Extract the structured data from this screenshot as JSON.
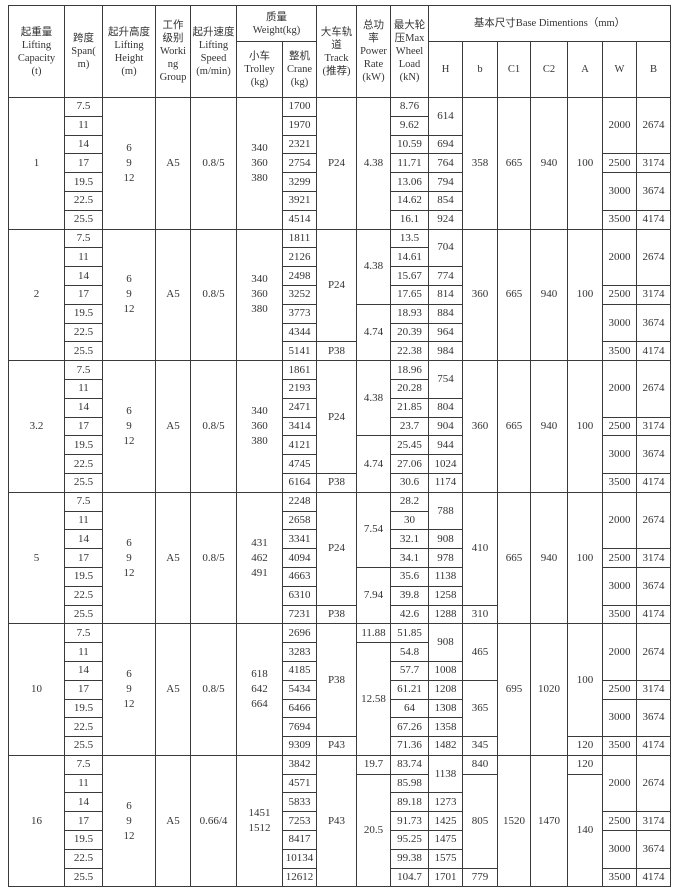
{
  "headers": {
    "capacity": "起重量\nLifting\nCapacity\n(t)",
    "span": "跨度\nSpan(\nm)",
    "height": "起升高度\nLifting\nHeight\n(m)",
    "group": "工作\n级别\nWorki\nng\nGroup",
    "speed": "起升速度\nLifting\nSpeed\n(m/min)",
    "weight": "质量\nWeight(kg)",
    "trolley": "小车\nTrolley\n(kg)",
    "crane": "整机\nCrane\n(kg)",
    "track": "大车轨\n道\nTrack\n(推荐)",
    "power": "总功\n率\nPower\nRate\n(kW)",
    "load": "最大轮\n压Max\nWheel\nLoad\n(kN)",
    "base": "基本尺寸Base Dimentions（mm）",
    "H": "H",
    "b": "b",
    "C1": "C1",
    "C2": "C2",
    "A": "A",
    "W": "W",
    "B": "B"
  },
  "spans": [
    "7.5",
    "11",
    "14",
    "17",
    "19.5",
    "22.5",
    "25.5"
  ],
  "blocks": [
    {
      "capacity": "1",
      "height": "6\n9\n12",
      "group": "A5",
      "speed": "0.8/5",
      "trolley": [
        [
          "340\n360\n380",
          7
        ]
      ],
      "crane": [
        [
          "1700",
          1
        ],
        [
          "1970",
          1
        ],
        [
          "2321",
          1
        ],
        [
          "2754",
          1
        ],
        [
          "3299",
          1
        ],
        [
          "3921",
          1
        ],
        [
          "4514",
          1
        ]
      ],
      "track": [
        [
          "P24",
          7
        ]
      ],
      "power": [
        [
          "4.38",
          7
        ]
      ],
      "load": [
        [
          "8.76",
          1
        ],
        [
          "9.62",
          1
        ],
        [
          "10.59",
          1
        ],
        [
          "11.71",
          1
        ],
        [
          "13.06",
          1
        ],
        [
          "14.62",
          1
        ],
        [
          "16.1",
          1
        ]
      ],
      "H": [
        [
          "614",
          2
        ],
        [
          "694",
          1
        ],
        [
          "764",
          1
        ],
        [
          "794",
          1
        ],
        [
          "854",
          1
        ],
        [
          "924",
          1
        ]
      ],
      "b": [
        [
          "358",
          7
        ]
      ],
      "C1": [
        [
          "665",
          7
        ]
      ],
      "C2": [
        [
          "940",
          7
        ]
      ],
      "A": [
        [
          "100",
          7
        ]
      ],
      "W": [
        [
          "2000",
          3
        ],
        [
          "2500",
          1
        ],
        [
          "3000",
          2
        ],
        [
          "3500",
          1
        ]
      ],
      "B": [
        [
          "2674",
          3
        ],
        [
          "3174",
          1
        ],
        [
          "3674",
          2
        ],
        [
          "4174",
          1
        ]
      ]
    },
    {
      "capacity": "2",
      "height": "6\n9\n12",
      "group": "A5",
      "speed": "0.8/5",
      "trolley": [
        [
          "340\n360\n380",
          7
        ]
      ],
      "crane": [
        [
          "1811",
          1
        ],
        [
          "2126",
          1
        ],
        [
          "2498",
          1
        ],
        [
          "3252",
          1
        ],
        [
          "3773",
          1
        ],
        [
          "4344",
          1
        ],
        [
          "5141",
          1
        ]
      ],
      "track": [
        [
          "P24",
          6
        ],
        [
          "P38",
          1
        ]
      ],
      "power": [
        [
          "4.38",
          4
        ],
        [
          "4.74",
          3
        ]
      ],
      "load": [
        [
          "13.5",
          1
        ],
        [
          "14.61",
          1
        ],
        [
          "15.67",
          1
        ],
        [
          "17.65",
          1
        ],
        [
          "18.93",
          1
        ],
        [
          "20.39",
          1
        ],
        [
          "22.38",
          1
        ]
      ],
      "H": [
        [
          "704",
          2
        ],
        [
          "774",
          1
        ],
        [
          "814",
          1
        ],
        [
          "884",
          1
        ],
        [
          "964",
          1
        ],
        [
          "984",
          1
        ]
      ],
      "b": [
        [
          "360",
          7
        ]
      ],
      "C1": [
        [
          "665",
          7
        ]
      ],
      "C2": [
        [
          "940",
          7
        ]
      ],
      "A": [
        [
          "100",
          7
        ]
      ],
      "W": [
        [
          "2000",
          3
        ],
        [
          "2500",
          1
        ],
        [
          "3000",
          2
        ],
        [
          "3500",
          1
        ]
      ],
      "B": [
        [
          "2674",
          3
        ],
        [
          "3174",
          1
        ],
        [
          "3674",
          2
        ],
        [
          "4174",
          1
        ]
      ]
    },
    {
      "capacity": "3.2",
      "height": "6\n9\n12",
      "group": "A5",
      "speed": "0.8/5",
      "trolley": [
        [
          "340\n360\n380",
          7
        ]
      ],
      "crane": [
        [
          "1861",
          1
        ],
        [
          "2193",
          1
        ],
        [
          "2471",
          1
        ],
        [
          "3414",
          1
        ],
        [
          "4121",
          1
        ],
        [
          "4745",
          1
        ],
        [
          "6164",
          1
        ]
      ],
      "track": [
        [
          "P24",
          6
        ],
        [
          "P38",
          1
        ]
      ],
      "power": [
        [
          "4.38",
          4
        ],
        [
          "4.74",
          3
        ]
      ],
      "load": [
        [
          "18.96",
          1
        ],
        [
          "20.28",
          1
        ],
        [
          "21.85",
          1
        ],
        [
          "23.7",
          1
        ],
        [
          "25.45",
          1
        ],
        [
          "27.06",
          1
        ],
        [
          "30.6",
          1
        ]
      ],
      "H": [
        [
          "754",
          2
        ],
        [
          "804",
          1
        ],
        [
          "904",
          1
        ],
        [
          "944",
          1
        ],
        [
          "1024",
          1
        ],
        [
          "1174",
          1
        ]
      ],
      "b": [
        [
          "360",
          7
        ]
      ],
      "C1": [
        [
          "665",
          7
        ]
      ],
      "C2": [
        [
          "940",
          7
        ]
      ],
      "A": [
        [
          "100",
          7
        ]
      ],
      "W": [
        [
          "2000",
          3
        ],
        [
          "2500",
          1
        ],
        [
          "3000",
          2
        ],
        [
          "3500",
          1
        ]
      ],
      "B": [
        [
          "2674",
          3
        ],
        [
          "3174",
          1
        ],
        [
          "3674",
          2
        ],
        [
          "4174",
          1
        ]
      ]
    },
    {
      "capacity": "5",
      "height": "6\n9\n12",
      "group": "A5",
      "speed": "0.8/5",
      "trolley": [
        [
          "431\n462\n491",
          7
        ]
      ],
      "crane": [
        [
          "2248",
          1
        ],
        [
          "2658",
          1
        ],
        [
          "3341",
          1
        ],
        [
          "4094",
          1
        ],
        [
          "4663",
          1
        ],
        [
          "6310",
          1
        ],
        [
          "7231",
          1
        ]
      ],
      "track": [
        [
          "P24",
          6
        ],
        [
          "P38",
          1
        ]
      ],
      "power": [
        [
          "7.54",
          4
        ],
        [
          "7.94",
          3
        ]
      ],
      "load": [
        [
          "28.2",
          1
        ],
        [
          "30",
          1
        ],
        [
          "32.1",
          1
        ],
        [
          "34.1",
          1
        ],
        [
          "35.6",
          1
        ],
        [
          "39.8",
          1
        ],
        [
          "42.6",
          1
        ]
      ],
      "H": [
        [
          "788",
          2
        ],
        [
          "908",
          1
        ],
        [
          "978",
          1
        ],
        [
          "1138",
          1
        ],
        [
          "1258",
          1
        ],
        [
          "1288",
          1
        ]
      ],
      "b": [
        [
          "410",
          6
        ],
        [
          "310",
          1
        ]
      ],
      "C1": [
        [
          "665",
          7
        ]
      ],
      "C2": [
        [
          "940",
          7
        ]
      ],
      "A": [
        [
          "100",
          7
        ]
      ],
      "W": [
        [
          "2000",
          3
        ],
        [
          "2500",
          1
        ],
        [
          "3000",
          2
        ],
        [
          "3500",
          1
        ]
      ],
      "B": [
        [
          "2674",
          3
        ],
        [
          "3174",
          1
        ],
        [
          "3674",
          2
        ],
        [
          "4174",
          1
        ]
      ]
    },
    {
      "capacity": "10",
      "height": "6\n9\n12",
      "group": "A5",
      "speed": "0.8/5",
      "trolley": [
        [
          "618\n642\n664",
          7
        ]
      ],
      "crane": [
        [
          "2696",
          1
        ],
        [
          "3283",
          1
        ],
        [
          "4185",
          1
        ],
        [
          "5434",
          1
        ],
        [
          "6466",
          1
        ],
        [
          "7694",
          1
        ],
        [
          "9309",
          1
        ]
      ],
      "track": [
        [
          "P38",
          6
        ],
        [
          "P43",
          1
        ]
      ],
      "power": [
        [
          "11.88",
          1
        ],
        [
          "12.58",
          6
        ]
      ],
      "load": [
        [
          "51.85",
          1
        ],
        [
          "54.8",
          1
        ],
        [
          "57.7",
          1
        ],
        [
          "61.21",
          1
        ],
        [
          "64",
          1
        ],
        [
          "67.26",
          1
        ],
        [
          "71.36",
          1
        ]
      ],
      "H": [
        [
          "908",
          2
        ],
        [
          "1008",
          1
        ],
        [
          "1208",
          1
        ],
        [
          "1308",
          1
        ],
        [
          "1358",
          1
        ],
        [
          "1482",
          1
        ]
      ],
      "b": [
        [
          "465",
          3
        ],
        [
          "365",
          3
        ],
        [
          "345",
          1
        ]
      ],
      "C1": [
        [
          "695",
          7
        ]
      ],
      "C2": [
        [
          "1020",
          7
        ]
      ],
      "A": [
        [
          "100",
          6
        ],
        [
          "120",
          1
        ]
      ],
      "W": [
        [
          "2000",
          3
        ],
        [
          "2500",
          1
        ],
        [
          "3000",
          2
        ],
        [
          "3500",
          1
        ]
      ],
      "B": [
        [
          "2674",
          3
        ],
        [
          "3174",
          1
        ],
        [
          "3674",
          2
        ],
        [
          "4174",
          1
        ]
      ]
    },
    {
      "capacity": "16",
      "height": "6\n9\n12",
      "group": "A5",
      "speed": "0.66/4",
      "trolley": [
        [
          "1451\n1512",
          7
        ]
      ],
      "crane": [
        [
          "3842",
          1
        ],
        [
          "4571",
          1
        ],
        [
          "5833",
          1
        ],
        [
          "7253",
          1
        ],
        [
          "8417",
          1
        ],
        [
          "10134",
          1
        ],
        [
          "12612",
          1
        ]
      ],
      "track": [
        [
          "P43",
          7
        ]
      ],
      "power": [
        [
          "19.7",
          1
        ],
        [
          "20.5",
          6
        ]
      ],
      "load": [
        [
          "83.74",
          1
        ],
        [
          "85.98",
          1
        ],
        [
          "89.18",
          1
        ],
        [
          "91.73",
          1
        ],
        [
          "95.25",
          1
        ],
        [
          "99.38",
          1
        ],
        [
          "104.7",
          1
        ]
      ],
      "H": [
        [
          "1138",
          2
        ],
        [
          "1273",
          1
        ],
        [
          "1425",
          1
        ],
        [
          "1475",
          1
        ],
        [
          "1575",
          1
        ],
        [
          "1701",
          1
        ]
      ],
      "b": [
        [
          "840",
          1
        ],
        [
          "805",
          5
        ],
        [
          "779",
          1
        ]
      ],
      "C1": [
        [
          "1520",
          7
        ]
      ],
      "C2": [
        [
          "1470",
          7
        ]
      ],
      "A": [
        [
          "120",
          1
        ],
        [
          "140",
          6
        ]
      ],
      "W": [
        [
          "2000",
          3
        ],
        [
          "2500",
          1
        ],
        [
          "3000",
          2
        ],
        [
          "3500",
          1
        ]
      ],
      "B": [
        [
          "2674",
          3
        ],
        [
          "3174",
          1
        ],
        [
          "3674",
          2
        ],
        [
          "4174",
          1
        ]
      ]
    }
  ]
}
